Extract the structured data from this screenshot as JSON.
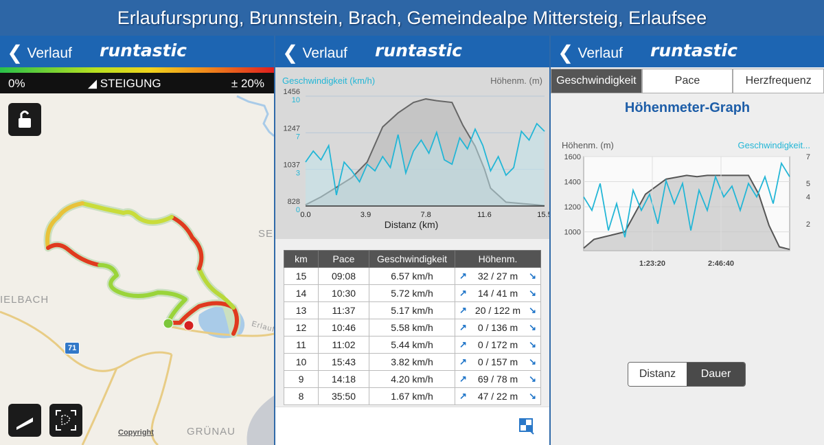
{
  "banner": {
    "title": "Erlaufursprung, Brunnstein, Brach, Gemeindealpe Mittersteig, Erlaufsee"
  },
  "colors": {
    "nav": "#1d65b2",
    "speed": "#22b6d6",
    "elevation": "#666666"
  },
  "panel1": {
    "back_label": "Verlauf",
    "logo": "runtastic",
    "grade_min": "0%",
    "grade_label": "STEIGUNG",
    "grade_max": "± 20%",
    "map_labels": {
      "elbach": "IELBACH",
      "gruenau": "GRÜNAU",
      "sei": "SE",
      "erlauf": "Erlauf"
    },
    "road_number": "71",
    "copyright": "Copyright",
    "icons": [
      "lock-icon",
      "slope-icon",
      "fullscreen-icon"
    ]
  },
  "panel2": {
    "back_label": "Verlauf",
    "logo": "runtastic",
    "chart_speed_label": "Geschwindigkeit (km/h)",
    "chart_elev_label": "Höhenm. (m)",
    "xlabel": "Distanz (km)",
    "table": {
      "headers": [
        "km",
        "Pace",
        "Geschwindigkeit",
        "Höhenm."
      ],
      "rows": [
        {
          "km": "15",
          "pace": "09:08",
          "speed": "6.57 km/h",
          "elev": "32 / 27 m"
        },
        {
          "km": "14",
          "pace": "10:30",
          "speed": "5.72 km/h",
          "elev": "14 / 41 m"
        },
        {
          "km": "13",
          "pace": "11:37",
          "speed": "5.17 km/h",
          "elev": "20 / 122 m"
        },
        {
          "km": "12",
          "pace": "10:46",
          "speed": "5.58 km/h",
          "elev": "0 / 136 m"
        },
        {
          "km": "11",
          "pace": "11:02",
          "speed": "5.44 km/h",
          "elev": "0 / 172 m"
        },
        {
          "km": "10",
          "pace": "15:43",
          "speed": "3.82 km/h",
          "elev": "0 / 157 m"
        },
        {
          "km": "9",
          "pace": "14:18",
          "speed": "4.20 km/h",
          "elev": "69 / 78 m"
        },
        {
          "km": "8",
          "pace": "35:50",
          "speed": "1.67 km/h",
          "elev": "47 / 22 m"
        }
      ]
    }
  },
  "panel3": {
    "back_label": "Verlauf",
    "logo": "runtastic",
    "tabs": [
      "Geschwindigkeit",
      "Pace",
      "Herzfrequenz"
    ],
    "graph_title": "Höhenmeter-Graph",
    "left_label": "Höhenm. (m)",
    "right_label": "Geschwindigkeit...",
    "seg": [
      "Distanz",
      "Dauer"
    ]
  },
  "chart_data": [
    {
      "type": "area",
      "xlabel": "Distanz (km)",
      "x_ticks": [
        "0.0",
        "3.9",
        "7.8",
        "11.6",
        "15.5"
      ],
      "y_left_ticks": [
        "1456",
        "1247",
        "1037",
        "828"
      ],
      "y_right_ticks": [
        "10",
        "7",
        "3",
        "0"
      ],
      "xlim": [
        0,
        15.5
      ],
      "series": [
        {
          "name": "Höhenm. (m)",
          "ylim": [
            828,
            1456
          ],
          "x": [
            0,
            1,
            2,
            3,
            4,
            5,
            6,
            7,
            7.8,
            8.5,
            9.5,
            10.2,
            11,
            11.6,
            12,
            13,
            14,
            15,
            15.5
          ],
          "values": [
            835,
            880,
            935,
            990,
            1080,
            1280,
            1360,
            1420,
            1440,
            1430,
            1420,
            1290,
            1170,
            1040,
            930,
            850,
            842,
            835,
            830
          ]
        },
        {
          "name": "Geschwindigkeit (km/h)",
          "ylim": [
            0,
            10
          ],
          "x": [
            0,
            0.5,
            1,
            1.5,
            2,
            2.5,
            3,
            3.5,
            4,
            4.5,
            5,
            5.5,
            6,
            6.5,
            7,
            7.5,
            8,
            8.5,
            9,
            9.5,
            10,
            10.5,
            11,
            11.5,
            12,
            12.5,
            13,
            13.5,
            14,
            14.5,
            15,
            15.5
          ],
          "values": [
            4,
            5,
            4.2,
            5.5,
            1,
            4,
            3.2,
            2.2,
            3.8,
            3.2,
            4.5,
            3.5,
            6.5,
            3,
            5,
            6,
            4.8,
            6.7,
            4.2,
            3.8,
            6.2,
            5.2,
            7,
            5.5,
            3.2,
            4.5,
            2.8,
            3.5,
            6.8,
            6,
            7.5,
            6.8
          ]
        }
      ]
    },
    {
      "type": "area",
      "title": "Höhenmeter-Graph",
      "x_ticks": [
        "1:23:20",
        "2:46:40"
      ],
      "y_left_ticks": [
        "1600",
        "1400",
        "1200",
        "1000"
      ],
      "y_right_ticks": [
        "7",
        "5",
        "4",
        "2"
      ],
      "series": [
        {
          "name": "Höhenm. (m)",
          "ylim": [
            850,
            1600
          ],
          "x": [
            0,
            0.05,
            0.1,
            0.2,
            0.3,
            0.4,
            0.5,
            0.55,
            0.6,
            0.7,
            0.8,
            0.85,
            0.9,
            0.95,
            1.0
          ],
          "values": [
            870,
            940,
            960,
            1000,
            1300,
            1420,
            1450,
            1440,
            1450,
            1450,
            1450,
            1300,
            1050,
            880,
            860
          ]
        },
        {
          "name": "Geschwindigkeit...",
          "ylim": [
            0,
            7
          ],
          "x": [
            0,
            0.04,
            0.08,
            0.12,
            0.16,
            0.2,
            0.24,
            0.28,
            0.32,
            0.36,
            0.4,
            0.44,
            0.48,
            0.52,
            0.56,
            0.6,
            0.64,
            0.68,
            0.72,
            0.76,
            0.8,
            0.84,
            0.88,
            0.92,
            0.96,
            1.0
          ],
          "values": [
            4,
            3,
            5,
            1.5,
            3.5,
            1,
            4.5,
            3,
            4.2,
            2,
            5.2,
            3.5,
            5,
            1.5,
            4.5,
            3,
            5.5,
            4,
            4.8,
            3,
            5,
            4,
            5.5,
            3.5,
            6.5,
            5.5
          ]
        }
      ]
    }
  ]
}
